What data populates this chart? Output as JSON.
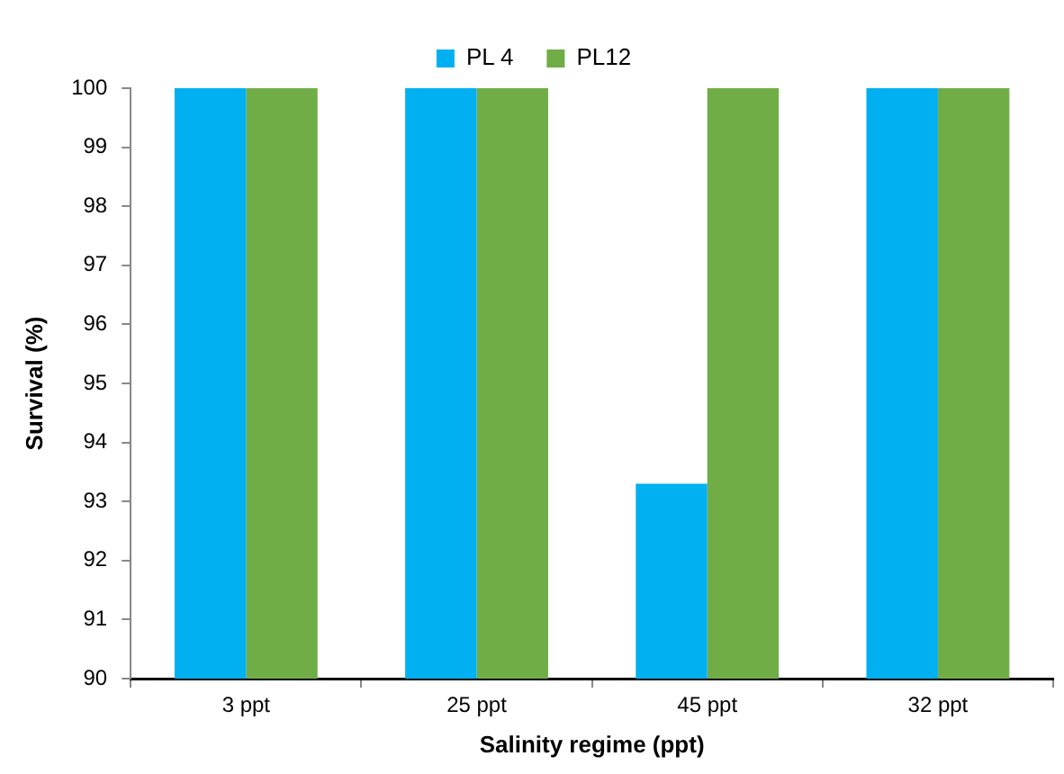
{
  "chart_data": {
    "type": "bar",
    "xlabel": "Salinity regime (ppt)",
    "ylabel": "Survival (%)",
    "categories": [
      "3 ppt",
      "25 ppt",
      "45 ppt",
      "32 ppt"
    ],
    "series": [
      {
        "name": "PL 4",
        "color": "#00b0f0",
        "values": [
          100,
          100,
          93.3,
          100
        ]
      },
      {
        "name": "PL12",
        "color": "#70ad47",
        "values": [
          100,
          100,
          100,
          100
        ]
      }
    ],
    "ylim": [
      90,
      100
    ],
    "yticks": [
      90,
      91,
      92,
      93,
      94,
      95,
      96,
      97,
      98,
      99,
      100
    ],
    "grid": false,
    "legend": "top"
  }
}
